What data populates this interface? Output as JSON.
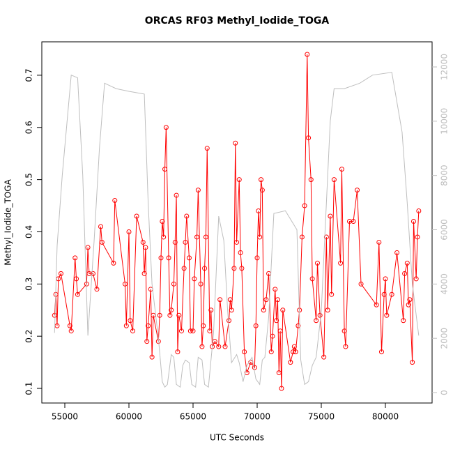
{
  "chart_data": {
    "type": "line",
    "title": "ORCAS RF03 Methyl_Iodide_TOGA",
    "xlabel": "UTC Seconds",
    "ylabel": "Methyl_Iodide_TOGA",
    "xlim": [
      53207,
      83641
    ],
    "ylim": [
      0.072,
      0.764
    ],
    "y2lim": [
      -385,
      12925
    ],
    "xticks": [
      55000,
      60000,
      65000,
      70000,
      75000,
      80000
    ],
    "yticks": [
      0.1,
      0.2,
      0.3,
      0.4,
      0.5,
      0.6,
      0.7
    ],
    "y2ticks": [
      0,
      2000,
      4000,
      6000,
      8000,
      10000,
      12000
    ],
    "series": [
      {
        "color": "#ff0000",
        "markers": true,
        "x": [
          54200,
          54300,
          54400,
          54500,
          54700,
          55400,
          55500,
          55800,
          55900,
          56000,
          56700,
          56800,
          56900,
          57200,
          57500,
          57800,
          57900,
          58800,
          58900,
          59700,
          59800,
          60000,
          60100,
          60300,
          60600,
          61100,
          61200,
          61300,
          61400,
          61500,
          61700,
          61800,
          61900,
          62300,
          62400,
          62500,
          62600,
          62700,
          62800,
          62900,
          63100,
          63200,
          63300,
          63500,
          63600,
          63700,
          63800,
          63900,
          64100,
          64300,
          64400,
          64500,
          64700,
          64800,
          65000,
          65100,
          65300,
          65400,
          65600,
          65700,
          65800,
          65900,
          66000,
          66100,
          66300,
          66400,
          66500,
          66700,
          67000,
          67100,
          67500,
          67800,
          67900,
          68000,
          68200,
          68300,
          68400,
          68600,
          68700,
          68800,
          69000,
          69200,
          69500,
          69800,
          69900,
          70000,
          70100,
          70200,
          70300,
          70400,
          70500,
          70700,
          70900,
          71100,
          71200,
          71400,
          71500,
          71600,
          71700,
          71800,
          71900,
          72000,
          72600,
          72800,
          72900,
          73000,
          73200,
          73300,
          73500,
          73700,
          73900,
          74000,
          74200,
          74300,
          74600,
          74700,
          74900,
          75200,
          75400,
          75500,
          75700,
          75800,
          76000,
          76500,
          76600,
          76800,
          76900,
          77200,
          77500,
          77800,
          78100,
          79300,
          79500,
          79700,
          79900,
          80000,
          80100,
          80500,
          80900,
          81400,
          81500,
          81700,
          81800,
          81900,
          82100,
          82200,
          82400,
          82500,
          82600
        ],
        "values": [
          0.24,
          0.28,
          0.22,
          0.31,
          0.32,
          0.22,
          0.21,
          0.35,
          0.31,
          0.28,
          0.3,
          0.37,
          0.32,
          0.32,
          0.29,
          0.41,
          0.38,
          0.34,
          0.46,
          0.3,
          0.22,
          0.4,
          0.23,
          0.21,
          0.43,
          0.38,
          0.32,
          0.37,
          0.19,
          0.22,
          0.29,
          0.16,
          0.24,
          0.19,
          0.24,
          0.35,
          0.42,
          0.39,
          0.52,
          0.6,
          0.35,
          0.24,
          0.25,
          0.3,
          0.38,
          0.47,
          0.17,
          0.24,
          0.21,
          0.33,
          0.38,
          0.43,
          0.35,
          0.21,
          0.21,
          0.31,
          0.39,
          0.48,
          0.3,
          0.18,
          0.22,
          0.33,
          0.39,
          0.56,
          0.21,
          0.25,
          0.18,
          0.19,
          0.18,
          0.27,
          0.18,
          0.23,
          0.27,
          0.25,
          0.33,
          0.57,
          0.38,
          0.5,
          0.36,
          0.33,
          0.17,
          0.13,
          0.15,
          0.14,
          0.22,
          0.35,
          0.44,
          0.39,
          0.5,
          0.48,
          0.25,
          0.27,
          0.32,
          0.17,
          0.2,
          0.29,
          0.23,
          0.27,
          0.13,
          0.21,
          0.1,
          0.25,
          0.15,
          0.17,
          0.18,
          0.17,
          0.22,
          0.25,
          0.39,
          0.45,
          0.74,
          0.58,
          0.5,
          0.31,
          0.23,
          0.34,
          0.24,
          0.16,
          0.39,
          0.25,
          0.43,
          0.28,
          0.5,
          0.34,
          0.52,
          0.21,
          0.18,
          0.42,
          0.42,
          0.48,
          0.3,
          0.26,
          0.38,
          0.17,
          0.28,
          0.31,
          0.24,
          0.28,
          0.36,
          0.23,
          0.32,
          0.34,
          0.26,
          0.27,
          0.15,
          0.42,
          0.31,
          0.39,
          0.44
        ]
      },
      {
        "color": "#bebebe",
        "axis": "y2",
        "markers": false,
        "x": [
          54200,
          54400,
          54800,
          55500,
          56000,
          56400,
          56800,
          57300,
          57700,
          58100,
          59000,
          60000,
          61200,
          61500,
          61800,
          62300,
          62600,
          62800,
          63000,
          63300,
          63500,
          63700,
          64000,
          64200,
          64400,
          64700,
          64900,
          65200,
          65400,
          65700,
          65900,
          66200,
          66600,
          67000,
          67400,
          67700,
          68000,
          68400,
          68600,
          68900,
          69200,
          69600,
          69900,
          70200,
          70400,
          70600,
          70900,
          71300,
          72200,
          73100,
          73400,
          73700,
          74000,
          74300,
          74600,
          75000,
          75700,
          76000,
          76800,
          78000,
          79000,
          80500,
          81300,
          81700,
          82100,
          82600
        ],
        "values": [
          2200,
          5400,
          8000,
          11700,
          11600,
          8000,
          2100,
          5700,
          9000,
          11400,
          11200,
          11100,
          11000,
          7000,
          4000,
          2000,
          400,
          200,
          300,
          1400,
          1300,
          300,
          200,
          1000,
          1200,
          1100,
          300,
          200,
          1300,
          1200,
          300,
          200,
          2200,
          6500,
          5600,
          3000,
          1100,
          1400,
          1100,
          400,
          1000,
          1300,
          500,
          300,
          1200,
          1300,
          2800,
          6600,
          6700,
          6000,
          1200,
          300,
          400,
          1000,
          1300,
          3000,
          10000,
          11200,
          11200,
          11400,
          11700,
          11800,
          9600,
          7000,
          4000,
          2100
        ]
      }
    ]
  }
}
